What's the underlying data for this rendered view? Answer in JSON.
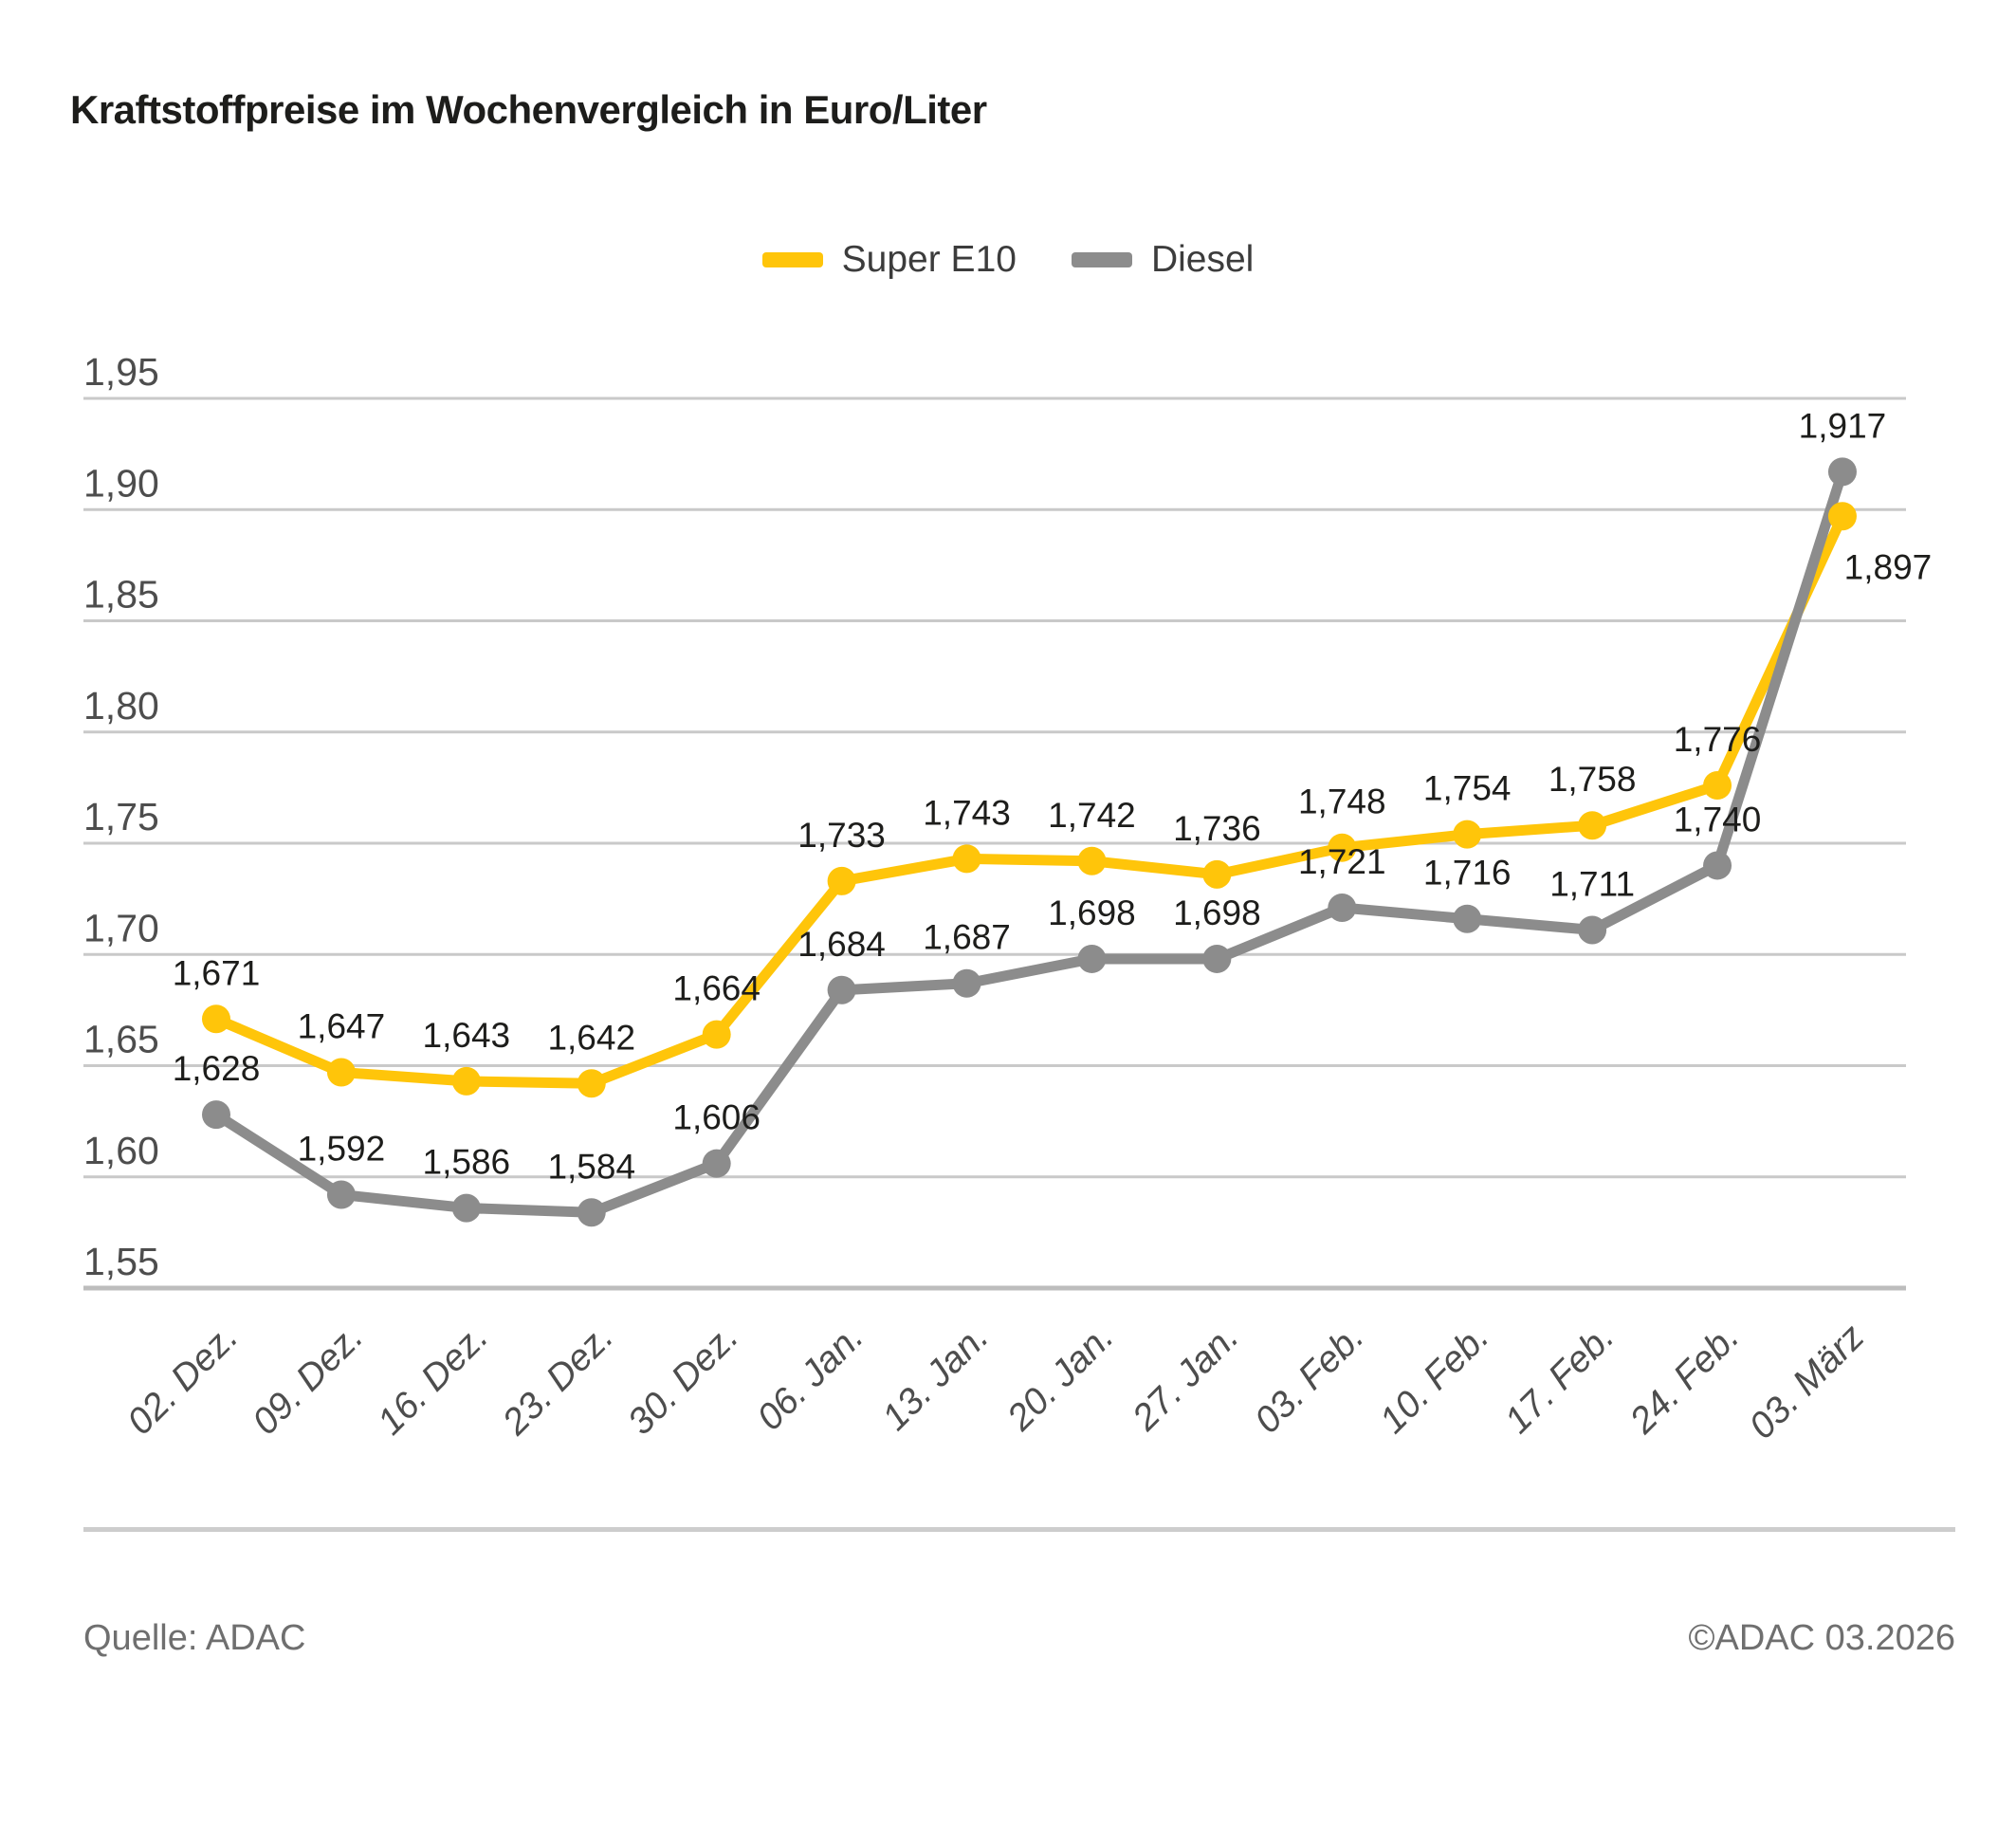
{
  "title": "Kraftstoffpreise im Wochenvergleich in Euro/Liter",
  "chart_data": {
    "type": "line",
    "x": [
      "02. Dez.",
      "09. Dez.",
      "16. Dez.",
      "23. Dez.",
      "30. Dez.",
      "06. Jan.",
      "13. Jan.",
      "20. Jan.",
      "27. Jan.",
      "03. Feb.",
      "10. Feb.",
      "17. Feb.",
      "24. Feb.",
      "03. März"
    ],
    "series": [
      {
        "name": "Super E10",
        "color": "#FFC50A",
        "values": [
          1.671,
          1.647,
          1.643,
          1.642,
          1.664,
          1.733,
          1.743,
          1.742,
          1.736,
          1.748,
          1.754,
          1.758,
          1.776,
          1.897
        ],
        "label_exceptions": {
          "13": {
            "dx": 48,
            "dy": 66
          }
        }
      },
      {
        "name": "Diesel",
        "color": "#8C8C8C",
        "values": [
          1.628,
          1.592,
          1.586,
          1.584,
          1.606,
          1.684,
          1.687,
          1.698,
          1.698,
          1.721,
          1.716,
          1.711,
          1.74,
          1.917
        ],
        "label_exceptions": {}
      }
    ],
    "ylim": [
      1.55,
      1.95
    ],
    "ytick_step": 0.05,
    "ytick_labels": [
      "1,55",
      "1,60",
      "1,65",
      "1,70",
      "1,75",
      "1,80",
      "1,85",
      "1,90",
      "1,95"
    ],
    "value_labels": true,
    "decimal_separator": ",",
    "grid": "horizontal",
    "grid_color": "#C9C9C9",
    "axis_line_color": "#BDBDBD",
    "axis_label_color": "#4D4D4D",
    "value_label_color": "#1D1D1B",
    "legend_position": "top-center"
  },
  "footer": {
    "source": "Quelle: ADAC",
    "copyright": "©ADAC 03.2026"
  }
}
